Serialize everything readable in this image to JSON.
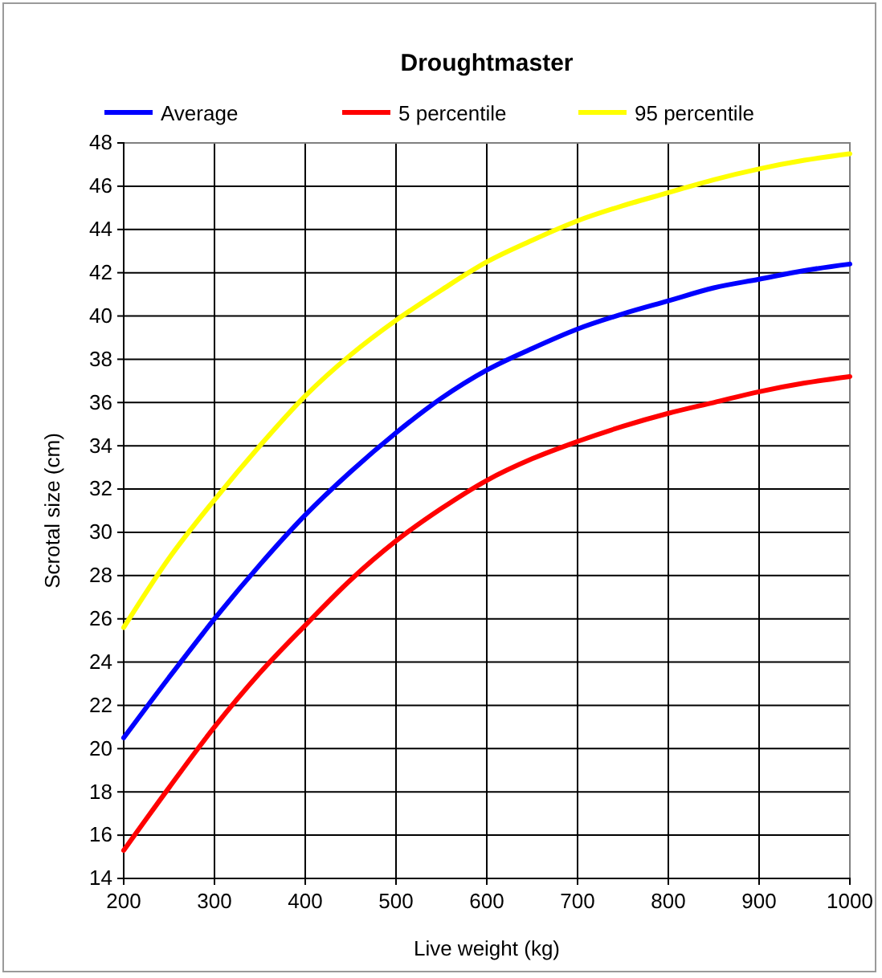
{
  "chart_data": {
    "type": "line",
    "title": "Droughtmaster",
    "xlabel": "Live weight (kg)",
    "ylabel": "Scrotal size (cm)",
    "x": [
      200,
      250,
      300,
      350,
      400,
      450,
      500,
      550,
      600,
      650,
      700,
      750,
      800,
      850,
      900,
      950,
      1000
    ],
    "series": [
      {
        "name": "Average",
        "color": "#0000ff",
        "values": [
          20.5,
          23.3,
          26,
          28.5,
          30.8,
          32.8,
          34.6,
          36.2,
          37.5,
          38.5,
          39.4,
          40.1,
          40.7,
          41.3,
          41.7,
          42.1,
          42.4
        ]
      },
      {
        "name": "5 percentile",
        "color": "#ff0000",
        "values": [
          15.3,
          18.2,
          21,
          23.5,
          25.7,
          27.8,
          29.6,
          31.1,
          32.4,
          33.4,
          34.2,
          34.9,
          35.5,
          36,
          36.5,
          36.9,
          37.2
        ]
      },
      {
        "name": "95 percentile",
        "color": "#ffff00",
        "values": [
          25.6,
          28.8,
          31.5,
          34,
          36.3,
          38.2,
          39.8,
          41.2,
          42.5,
          43.5,
          44.4,
          45.1,
          45.7,
          46.3,
          46.8,
          47.2,
          47.5
        ]
      }
    ],
    "xlim": [
      200,
      1000
    ],
    "xticks": [
      200,
      300,
      400,
      500,
      600,
      700,
      800,
      900,
      1000
    ],
    "ylim": [
      14,
      48
    ],
    "yticks": [
      14,
      16,
      18,
      20,
      22,
      24,
      26,
      28,
      30,
      32,
      34,
      36,
      38,
      40,
      42,
      44,
      46,
      48
    ],
    "grid": true,
    "legend": "top",
    "marker": "none",
    "line_style": "solid"
  }
}
